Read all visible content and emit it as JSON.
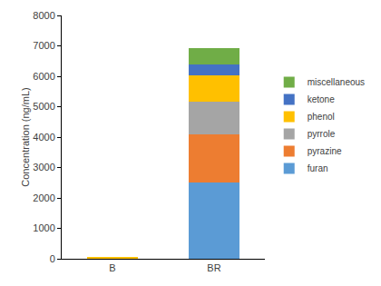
{
  "chart_data": {
    "type": "bar",
    "stacked": true,
    "legend": "right",
    "grid": false,
    "y_label": "Concentration (ng/mL)",
    "categories": [
      "B",
      "BR"
    ],
    "series": [
      {
        "name": "furan",
        "color": "#5b9bd5",
        "values": [
          0,
          2500
        ]
      },
      {
        "name": "pyrazine",
        "color": "#ed7d31",
        "values": [
          0,
          1600
        ]
      },
      {
        "name": "pyrrole",
        "color": "#a5a5a5",
        "values": [
          0,
          1050
        ]
      },
      {
        "name": "phenol",
        "color": "#ffc000",
        "values": [
          60,
          880
        ]
      },
      {
        "name": "ketone",
        "color": "#4472c4",
        "values": [
          0,
          370
        ]
      },
      {
        "name": "miscellaneous",
        "color": "#70ad47",
        "values": [
          0,
          530
        ]
      }
    ],
    "ylim": [
      0,
      8000
    ],
    "yticks": [
      0,
      1000,
      2000,
      3000,
      4000,
      5000,
      6000,
      7000,
      8000
    ]
  }
}
